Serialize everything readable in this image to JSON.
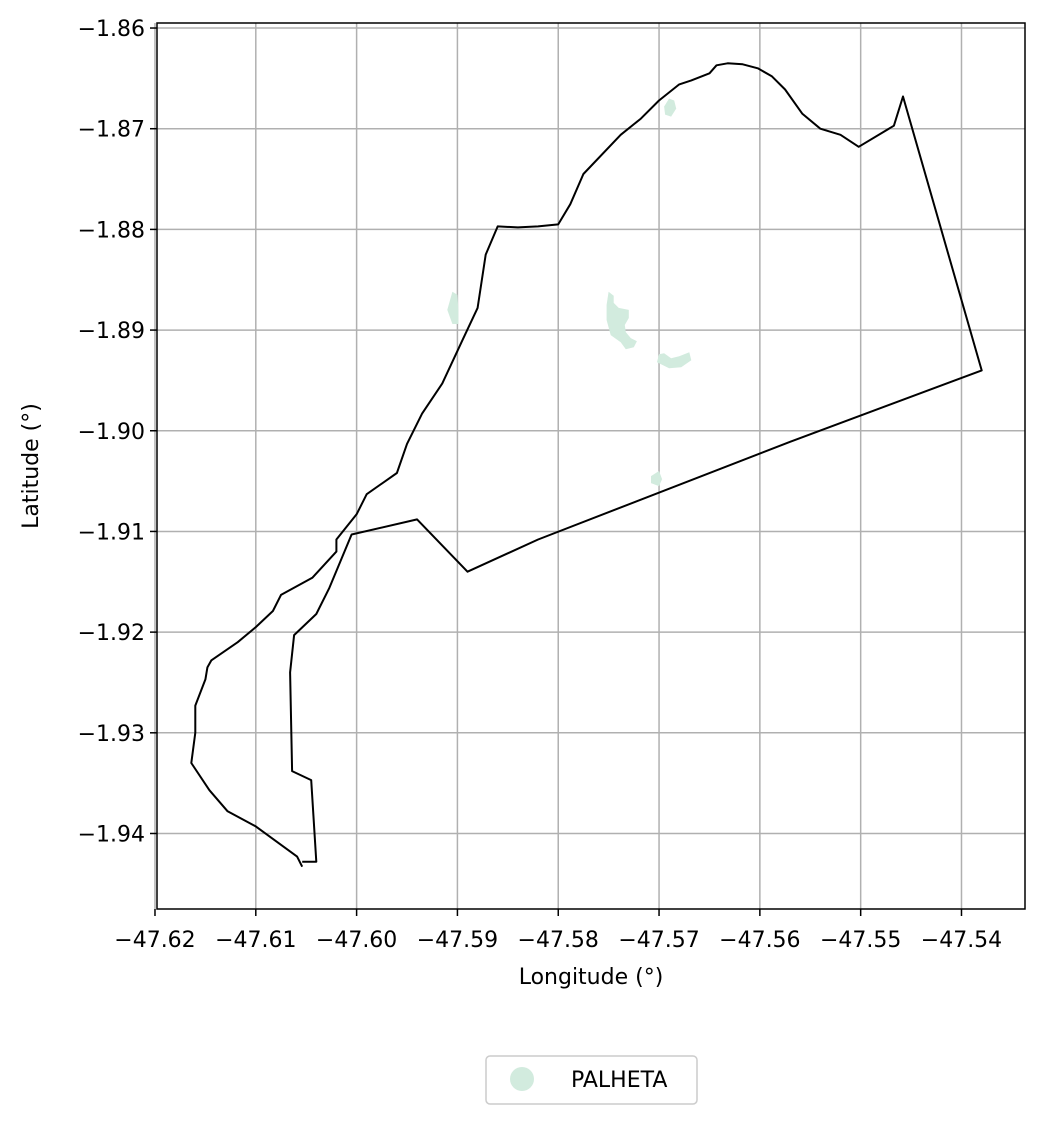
{
  "chart_data": {
    "type": "map",
    "xlabel": "Longitude (°)",
    "ylabel": "Latitude (°)",
    "xlim": [
      -47.6198,
      -47.5337
    ],
    "ylim": [
      -1.9475,
      -1.8595
    ],
    "grid": true,
    "x_ticks": [
      {
        "value": -47.62,
        "label": "−47.62"
      },
      {
        "value": -47.61,
        "label": "−47.61"
      },
      {
        "value": -47.6,
        "label": "−47.60"
      },
      {
        "value": -47.59,
        "label": "−47.59"
      },
      {
        "value": -47.58,
        "label": "−47.58"
      },
      {
        "value": -47.57,
        "label": "−47.57"
      },
      {
        "value": -47.56,
        "label": "−47.56"
      },
      {
        "value": -47.55,
        "label": "−47.55"
      },
      {
        "value": -47.54,
        "label": "−47.54"
      }
    ],
    "y_ticks": [
      {
        "value": -1.86,
        "label": "−1.86"
      },
      {
        "value": -1.87,
        "label": "−1.87"
      },
      {
        "value": -1.88,
        "label": "−1.88"
      },
      {
        "value": -1.89,
        "label": "−1.89"
      },
      {
        "value": -1.9,
        "label": "−1.90"
      },
      {
        "value": -1.91,
        "label": "−1.91"
      },
      {
        "value": -1.92,
        "label": "−1.92"
      },
      {
        "value": -1.93,
        "label": "−1.93"
      },
      {
        "value": -1.94,
        "label": "−1.94"
      }
    ],
    "boundary": {
      "color": "#000000",
      "points": [
        [
          -47.6054,
          -1.9433
        ],
        [
          -47.6059,
          -1.9423
        ],
        [
          -47.61,
          -1.9393
        ],
        [
          -47.6128,
          -1.9378
        ],
        [
          -47.6146,
          -1.9357
        ],
        [
          -47.6164,
          -1.933
        ],
        [
          -47.616,
          -1.93
        ],
        [
          -47.616,
          -1.9273
        ],
        [
          -47.615,
          -1.9247
        ],
        [
          -47.6148,
          -1.9235
        ],
        [
          -47.6144,
          -1.9228
        ],
        [
          -47.6118,
          -1.921
        ],
        [
          -47.61,
          -1.9195
        ],
        [
          -47.6083,
          -1.9179
        ],
        [
          -47.6075,
          -1.9163
        ],
        [
          -47.6044,
          -1.9146
        ],
        [
          -47.602,
          -1.912
        ],
        [
          -47.602,
          -1.9108
        ],
        [
          -47.6,
          -1.9083
        ],
        [
          -47.599,
          -1.9063
        ],
        [
          -47.596,
          -1.9042
        ],
        [
          -47.595,
          -1.9013
        ],
        [
          -47.5935,
          -1.8983
        ],
        [
          -47.5915,
          -1.8953
        ],
        [
          -47.5895,
          -1.891
        ],
        [
          -47.588,
          -1.8878
        ],
        [
          -47.5872,
          -1.8825
        ],
        [
          -47.586,
          -1.8797
        ],
        [
          -47.584,
          -1.8798
        ],
        [
          -47.582,
          -1.8797
        ],
        [
          -47.58,
          -1.8795
        ],
        [
          -47.5788,
          -1.8775
        ],
        [
          -47.5775,
          -1.8745
        ],
        [
          -47.5738,
          -1.8706
        ],
        [
          -47.5718,
          -1.869
        ],
        [
          -47.57,
          -1.8672
        ],
        [
          -47.568,
          -1.8656
        ],
        [
          -47.5668,
          -1.8652
        ],
        [
          -47.565,
          -1.8645
        ],
        [
          -47.5643,
          -1.8637
        ],
        [
          -47.5632,
          -1.8635
        ],
        [
          -47.5617,
          -1.8636
        ],
        [
          -47.5602,
          -1.864
        ],
        [
          -47.5588,
          -1.8648
        ],
        [
          -47.5575,
          -1.8661
        ],
        [
          -47.5558,
          -1.8685
        ],
        [
          -47.554,
          -1.87
        ],
        [
          -47.552,
          -1.8706
        ],
        [
          -47.5502,
          -1.8718
        ],
        [
          -47.5467,
          -1.8697
        ],
        [
          -47.5458,
          -1.8668
        ],
        [
          -47.538,
          -1.894
        ],
        [
          -47.557,
          -1.9011
        ],
        [
          -47.582,
          -1.9108
        ],
        [
          -47.589,
          -1.914
        ],
        [
          -47.594,
          -1.9088
        ],
        [
          -47.6005,
          -1.9103
        ],
        [
          -47.6027,
          -1.9156
        ],
        [
          -47.604,
          -1.9182
        ],
        [
          -47.6062,
          -1.9203
        ],
        [
          -47.6066,
          -1.924
        ],
        [
          -47.6064,
          -1.9338
        ],
        [
          -47.6045,
          -1.9347
        ],
        [
          -47.604,
          -1.9428
        ],
        [
          -47.6054,
          -1.9428
        ]
      ]
    },
    "series": [
      {
        "name": "PALHETA",
        "color": "#d2ebde",
        "patches": [
          [
            [
              -47.5695,
              -1.8678
            ],
            [
              -47.569,
              -1.867
            ],
            [
              -47.5685,
              -1.8672
            ],
            [
              -47.5683,
              -1.868
            ],
            [
              -47.5688,
              -1.8688
            ],
            [
              -47.5694,
              -1.8686
            ]
          ],
          [
            [
              -47.591,
              -1.888
            ],
            [
              -47.5905,
              -1.8862
            ],
            [
              -47.59,
              -1.8865
            ],
            [
              -47.5899,
              -1.888
            ],
            [
              -47.5899,
              -1.8894
            ],
            [
              -47.5905,
              -1.8894
            ]
          ],
          [
            [
              -47.575,
              -1.8862
            ],
            [
              -47.5745,
              -1.8866
            ],
            [
              -47.5745,
              -1.8873
            ],
            [
              -47.574,
              -1.8878
            ],
            [
              -47.573,
              -1.888
            ],
            [
              -47.573,
              -1.8888
            ],
            [
              -47.5734,
              -1.8895
            ],
            [
              -47.5733,
              -1.8902
            ],
            [
              -47.5728,
              -1.8908
            ],
            [
              -47.5722,
              -1.8911
            ],
            [
              -47.5725,
              -1.8917
            ],
            [
              -47.5733,
              -1.8919
            ],
            [
              -47.5738,
              -1.8912
            ],
            [
              -47.5748,
              -1.8905
            ],
            [
              -47.5752,
              -1.889
            ],
            [
              -47.5752,
              -1.8875
            ]
          ],
          [
            [
              -47.57,
              -1.8924
            ],
            [
              -47.5695,
              -1.8923
            ],
            [
              -47.5688,
              -1.8928
            ],
            [
              -47.568,
              -1.8926
            ],
            [
              -47.567,
              -1.8922
            ],
            [
              -47.5668,
              -1.893
            ],
            [
              -47.5678,
              -1.8937
            ],
            [
              -47.569,
              -1.8938
            ],
            [
              -47.5702,
              -1.8932
            ]
          ],
          [
            [
              -47.5708,
              -1.9045
            ],
            [
              -47.57,
              -1.904
            ],
            [
              -47.5697,
              -1.9048
            ],
            [
              -47.57,
              -1.9055
            ],
            [
              -47.5708,
              -1.9052
            ]
          ]
        ]
      }
    ],
    "legend": {
      "placement": "bottom-center",
      "entries": [
        "PALHETA"
      ]
    }
  }
}
